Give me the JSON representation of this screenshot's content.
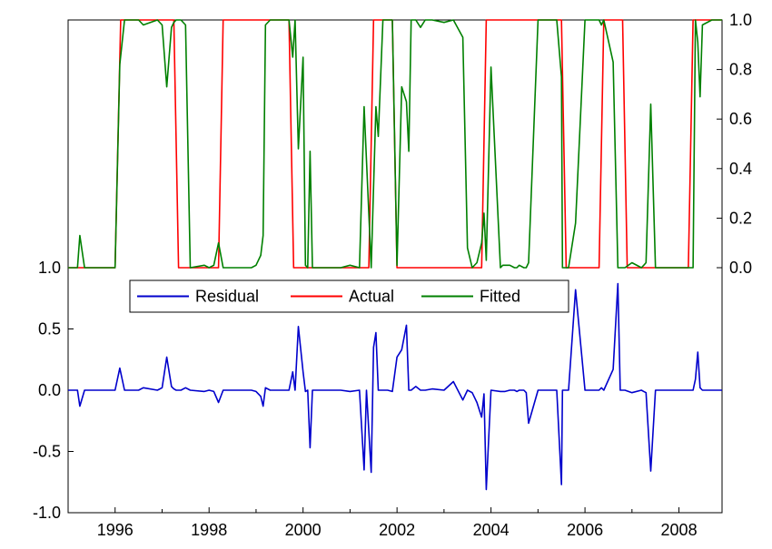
{
  "chart_data": {
    "type": "line",
    "x_axis": {
      "type": "time",
      "range": [
        1995.0,
        2008.917
      ],
      "tick_labels": [
        "1996",
        "1998",
        "2000",
        "2002",
        "2004",
        "2006",
        "2008"
      ],
      "tick_values": [
        1996,
        1998,
        2000,
        2002,
        2004,
        2006,
        2008
      ]
    },
    "left_axis": {
      "range": [
        -1.0,
        1.0
      ],
      "tick_labels": [
        "1.0",
        "0.5",
        "0.0",
        "-0.5",
        "-1.0"
      ],
      "tick_values": [
        1.0,
        0.5,
        0.0,
        -0.5,
        -1.0
      ]
    },
    "right_axis": {
      "range": [
        0.0,
        1.0
      ],
      "tick_labels": [
        "1.0",
        "0.8",
        "0.6",
        "0.4",
        "0.2",
        "0.0"
      ],
      "tick_values": [
        1.0,
        0.8,
        0.6,
        0.4,
        0.2,
        0.0
      ]
    },
    "legend": {
      "placement": "center",
      "entries": [
        "Residual",
        "Actual",
        "Fitted"
      ]
    },
    "colors": {
      "Residual": "#0000CC",
      "Actual": "#FF0000",
      "Fitted": "#008000"
    },
    "series": [
      {
        "name": "Actual",
        "axis": "right",
        "x": [
          1995.0,
          1995.5,
          1996.0,
          1996.12,
          1997.25,
          1997.35,
          1998.2,
          1998.3,
          1999.7,
          1999.8,
          2001.4,
          2001.5,
          2001.9,
          2002.0,
          2003.8,
          2003.9,
          2005.5,
          2005.6,
          2006.3,
          2006.4,
          2006.8,
          2006.9,
          2008.2,
          2008.3,
          2008.917
        ],
        "y": [
          0,
          0,
          0,
          1,
          1,
          0,
          0,
          1,
          1,
          0,
          0,
          1,
          1,
          0,
          0,
          1,
          1,
          0,
          0,
          1,
          1,
          0,
          0,
          1,
          1
        ]
      },
      {
        "name": "Fitted",
        "axis": "right",
        "x": [
          1995.0,
          1995.2,
          1995.25,
          1995.35,
          1995.5,
          1996.0,
          1996.1,
          1996.2,
          1996.5,
          1996.6,
          1996.9,
          1997.0,
          1997.1,
          1997.2,
          1997.25,
          1997.3,
          1997.4,
          1997.5,
          1997.6,
          1997.9,
          1998.0,
          1998.1,
          1998.2,
          1998.3,
          1998.4,
          1998.6,
          1998.9,
          1999.0,
          1999.1,
          1999.15,
          1999.2,
          1999.3,
          1999.7,
          1999.78,
          1999.83,
          1999.9,
          2000.0,
          2000.05,
          2000.1,
          2000.15,
          2000.2,
          2000.3,
          2000.4,
          2000.6,
          2000.8,
          2001.0,
          2001.2,
          2001.3,
          2001.45,
          2001.55,
          2001.6,
          2001.7,
          2001.8,
          2001.9,
          2002.0,
          2002.1,
          2002.2,
          2002.25,
          2002.3,
          2002.4,
          2002.5,
          2002.6,
          2002.75,
          2003.0,
          2003.2,
          2003.4,
          2003.5,
          2003.6,
          2003.7,
          2003.8,
          2003.85,
          2003.9,
          2004.0,
          2004.2,
          2004.25,
          2004.3,
          2004.4,
          2004.5,
          2004.55,
          2004.6,
          2004.7,
          2004.75,
          2004.8,
          2005.0,
          2005.2,
          2005.3,
          2005.4,
          2005.5,
          2005.52,
          2005.58,
          2005.65,
          2005.8,
          2006.0,
          2006.3,
          2006.35,
          2006.4,
          2006.6,
          2006.7,
          2006.75,
          2006.8,
          2006.85,
          2007.0,
          2007.2,
          2007.25,
          2007.3,
          2007.4,
          2007.5,
          2007.55,
          2007.6,
          2007.65,
          2007.7,
          2008.1,
          2008.2,
          2008.3,
          2008.35,
          2008.4,
          2008.45,
          2008.5,
          2008.7,
          2008.917
        ],
        "y": [
          0,
          0,
          0.13,
          0,
          0,
          0,
          0.82,
          1,
          1,
          0.98,
          1,
          0.98,
          0.73,
          0.97,
          0.99,
          1,
          1,
          0.98,
          0,
          0.01,
          0,
          0.01,
          0.1,
          0,
          0,
          0,
          0,
          0.01,
          0.05,
          0.13,
          0.98,
          1,
          1,
          0.85,
          1,
          0.48,
          0.85,
          0.01,
          0,
          0.47,
          0,
          0,
          0,
          0,
          0,
          0.01,
          0,
          0.65,
          0,
          0.65,
          0.53,
          1,
          1,
          1,
          0.01,
          0.73,
          0.67,
          0.47,
          1,
          1,
          0.97,
          1,
          1,
          0.99,
          1,
          0.93,
          0.08,
          0,
          0.02,
          0.1,
          0.22,
          0.03,
          0.81,
          0,
          0.01,
          0.01,
          0.01,
          0,
          0,
          0.01,
          0,
          0,
          0.02,
          1,
          1,
          1,
          1,
          0.77,
          0,
          0,
          0,
          0.18,
          1,
          1,
          0.98,
          1,
          0.83,
          0,
          0,
          0,
          0,
          0.02,
          0,
          0.01,
          0.02,
          0.66,
          0,
          0,
          0,
          0,
          0,
          0,
          0,
          0,
          1,
          0.91,
          0.69,
          0.98,
          1,
          1
        ]
      },
      {
        "name": "Residual",
        "axis": "left",
        "x": [
          1995.0,
          1995.2,
          1995.25,
          1995.35,
          1995.5,
          1996.0,
          1996.1,
          1996.2,
          1996.5,
          1996.6,
          1996.9,
          1997.0,
          1997.1,
          1997.2,
          1997.25,
          1997.3,
          1997.35,
          1997.4,
          1997.5,
          1997.6,
          1997.9,
          1998.0,
          1998.1,
          1998.2,
          1998.3,
          1998.4,
          1998.6,
          1998.9,
          1999.0,
          1999.1,
          1999.15,
          1999.2,
          1999.3,
          1999.7,
          1999.78,
          1999.83,
          1999.9,
          2000.0,
          2000.05,
          2000.1,
          2000.15,
          2000.2,
          2000.3,
          2000.4,
          2000.6,
          2000.8,
          2001.0,
          2001.2,
          2001.3,
          2001.35,
          2001.45,
          2001.5,
          2001.55,
          2001.6,
          2001.7,
          2001.8,
          2001.9,
          2002.0,
          2002.1,
          2002.2,
          2002.25,
          2002.3,
          2002.4,
          2002.5,
          2002.6,
          2002.75,
          2003.0,
          2003.2,
          2003.4,
          2003.5,
          2003.6,
          2003.7,
          2003.8,
          2003.85,
          2003.9,
          2004.0,
          2004.2,
          2004.25,
          2004.3,
          2004.4,
          2004.5,
          2004.55,
          2004.6,
          2004.7,
          2004.75,
          2004.8,
          2005.0,
          2005.2,
          2005.3,
          2005.4,
          2005.5,
          2005.52,
          2005.58,
          2005.65,
          2005.8,
          2006.0,
          2006.3,
          2006.35,
          2006.4,
          2006.6,
          2006.7,
          2006.75,
          2006.8,
          2006.85,
          2007.0,
          2007.2,
          2007.25,
          2007.3,
          2007.4,
          2007.5,
          2007.55,
          2007.6,
          2007.65,
          2007.7,
          2008.1,
          2008.2,
          2008.3,
          2008.35,
          2008.4,
          2008.45,
          2008.5,
          2008.7,
          2008.917
        ],
        "y": [
          0,
          0,
          -0.13,
          0,
          0,
          0,
          0.18,
          0,
          0,
          0.02,
          0,
          0.02,
          0.27,
          0.03,
          0.01,
          0,
          0,
          0,
          0.02,
          0,
          -0.01,
          0,
          -0.01,
          -0.1,
          0,
          0,
          0,
          0,
          -0.01,
          -0.05,
          -0.13,
          0.02,
          0,
          0,
          0.15,
          0,
          0.52,
          0.15,
          -0.01,
          0,
          -0.47,
          0,
          0,
          0,
          0,
          0,
          -0.01,
          0,
          -0.65,
          0,
          -0.67,
          0.35,
          0.47,
          0,
          0,
          0,
          -0.01,
          0.27,
          0.33,
          0.53,
          0,
          0,
          0.03,
          0,
          0,
          0.01,
          0,
          0.07,
          -0.08,
          0,
          -0.02,
          -0.1,
          -0.22,
          -0.03,
          -0.81,
          0,
          -0.01,
          -0.01,
          -0.01,
          0,
          0,
          -0.01,
          0,
          0,
          -0.02,
          -0.27,
          0,
          0,
          0,
          0,
          -0.77,
          0,
          0,
          0,
          0.82,
          0,
          0,
          0.02,
          0,
          0.17,
          0.87,
          0,
          0,
          0,
          -0.02,
          0,
          -0.01,
          -0.02,
          -0.66,
          0,
          0,
          0,
          0,
          0,
          0,
          0,
          0,
          0.09,
          0.31,
          0.02,
          0,
          0,
          0
        ]
      }
    ]
  }
}
